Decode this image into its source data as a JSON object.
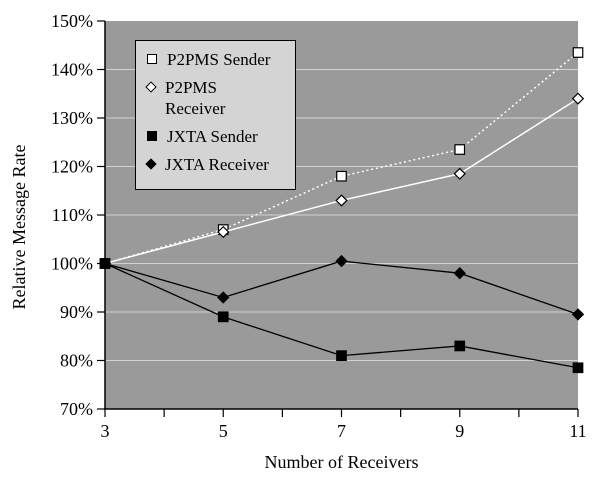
{
  "chart_data": {
    "type": "line",
    "x": [
      3,
      5,
      7,
      9,
      11
    ],
    "xlim": [
      3,
      11
    ],
    "ylim": [
      70,
      150
    ],
    "x_tick_labels": [
      "3",
      "5",
      "7",
      "9",
      "11"
    ],
    "y_tick_labels": [
      "70%",
      "80%",
      "90%",
      "100%",
      "110%",
      "120%",
      "130%",
      "140%",
      "150%"
    ],
    "xlabel": "Number of Receivers",
    "ylabel": "Relative Message Rate",
    "grid": "horizontal",
    "legend_position": "top-left-inside",
    "colors": {
      "plot_bg": "#9a9a9a",
      "gridline": "#d2d2d2",
      "legend_bg": "#d4d4d4",
      "axis": "#000000",
      "p2pms": "#ffffff",
      "jxta": "#000000"
    },
    "series": [
      {
        "name": "P2PMS Sender",
        "marker": "square-open",
        "line": "dotted",
        "color": "#ffffff",
        "values": [
          100,
          107,
          118,
          123.5,
          143.5
        ]
      },
      {
        "name": "P2PMS Receiver",
        "marker": "diamond-open",
        "line": "solid",
        "color": "#ffffff",
        "values": [
          100,
          106.5,
          113,
          118.5,
          134
        ]
      },
      {
        "name": "JXTA Sender",
        "marker": "square-filled",
        "line": "solid",
        "color": "#000000",
        "values": [
          100,
          89,
          81,
          83,
          78.5
        ]
      },
      {
        "name": "JXTA Receiver",
        "marker": "diamond-filled",
        "line": "solid",
        "color": "#000000",
        "values": [
          100,
          93,
          100.5,
          98,
          89.5
        ]
      }
    ]
  }
}
